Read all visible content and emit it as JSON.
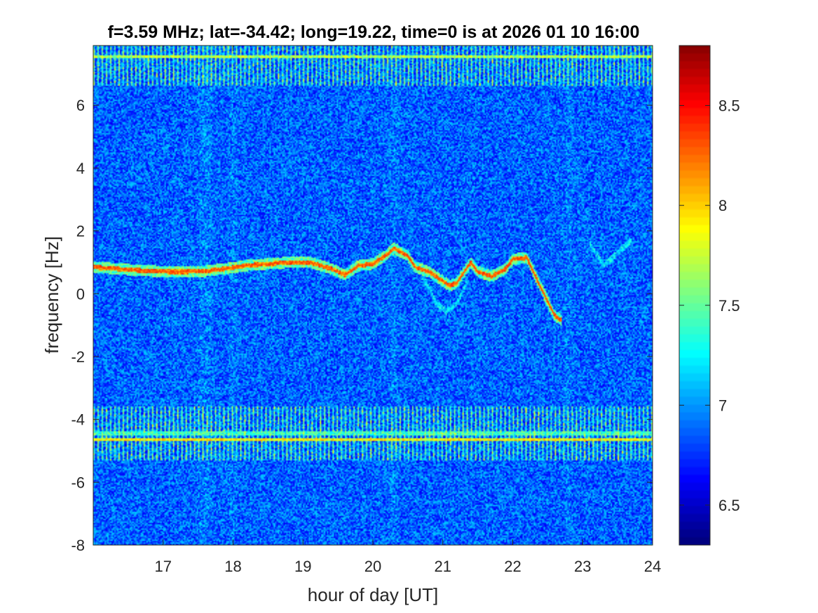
{
  "chart_data": {
    "type": "heatmap",
    "title": "f=3.59 MHz;  lat=-34.42; long=19.22, time=0 is at 2026 01 10 16:00",
    "xlabel": "hour of day [UT]",
    "ylabel": "frequency [Hz]",
    "xlim": [
      16,
      24
    ],
    "ylim": [
      -8,
      7.9
    ],
    "xticks": [
      17,
      18,
      19,
      20,
      21,
      22,
      23,
      24
    ],
    "yticks": [
      -8,
      -6,
      -4,
      -2,
      0,
      2,
      4,
      6
    ],
    "colorbar": {
      "colormap": "jet",
      "clim": [
        6.3,
        8.8
      ],
      "ticks": [
        6.5,
        7,
        7.5,
        8,
        8.5
      ],
      "tick_labels": [
        "6.5",
        "7",
        "7.5",
        "8",
        "8.5"
      ]
    },
    "background_level": 6.85,
    "doppler_trace": {
      "x": [
        16.0,
        16.3,
        16.6,
        16.9,
        17.1,
        17.3,
        17.6,
        17.9,
        18.2,
        18.5,
        18.8,
        19.1,
        19.4,
        19.6,
        19.8,
        20.0,
        20.2,
        20.3,
        20.5,
        20.6,
        20.8,
        21.0,
        21.1,
        21.2,
        21.4,
        21.5,
        21.7,
        21.9,
        22.0,
        22.2,
        22.4,
        22.6,
        22.7
      ],
      "y": [
        0.85,
        0.8,
        0.75,
        0.72,
        0.7,
        0.7,
        0.72,
        0.8,
        0.9,
        0.95,
        1.0,
        1.0,
        0.8,
        0.6,
        0.9,
        0.95,
        1.25,
        1.45,
        1.2,
        0.85,
        0.7,
        0.4,
        0.25,
        0.35,
        1.0,
        0.7,
        0.55,
        0.8,
        1.1,
        1.15,
        0.2,
        -0.7,
        -0.85
      ]
    },
    "secondary_traces": [
      {
        "x": [
          20.7,
          20.9,
          21.05,
          21.2,
          21.35
        ],
        "y": [
          0.6,
          -0.3,
          -0.55,
          -0.3,
          0.4
        ]
      },
      {
        "x": [
          23.1,
          23.3,
          23.5,
          23.7
        ],
        "y": [
          1.6,
          0.9,
          1.3,
          1.7
        ]
      }
    ],
    "tone_bands": [
      {
        "frequency": 7.55,
        "level": 7.9
      },
      {
        "frequency": -4.45,
        "level": 7.6
      },
      {
        "frequency": -4.65,
        "level": 8.1
      }
    ],
    "comb_bands": [
      {
        "y_range": [
          6.6,
          7.9
        ]
      },
      {
        "y_range": [
          -5.3,
          -3.6
        ]
      }
    ],
    "enhanced_columns": [
      17.55,
      17.65,
      18.0,
      20.3,
      22.8
    ]
  }
}
